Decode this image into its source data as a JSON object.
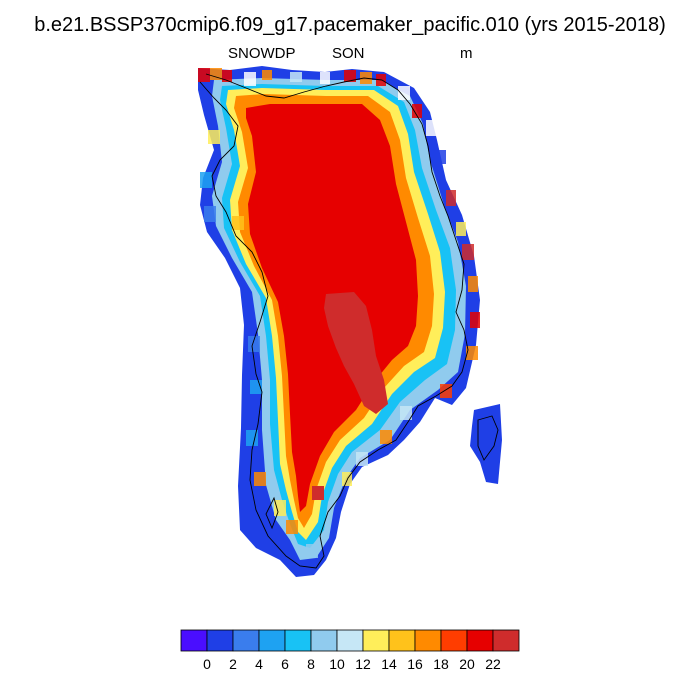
{
  "header": {
    "title": "b.e21.BSSP370cmip6.f09_g17.pacemaker_pacific.010 (yrs 2015-2018)",
    "variable": "SNOWDP",
    "season": "SON",
    "units": "m"
  },
  "colorbar": {
    "colors": [
      "#4a0eff",
      "#1f3fe6",
      "#3a7ded",
      "#1ea2f2",
      "#18c2f5",
      "#90cbee",
      "#c6e7f6",
      "#ffee5a",
      "#ffc21b",
      "#ff8a00",
      "#ff3d00",
      "#e60000",
      "#cf2c2c"
    ],
    "labels": [
      "0",
      "2",
      "4",
      "6",
      "8",
      "10",
      "12",
      "14",
      "16",
      "18",
      "20",
      "22"
    ]
  }
}
